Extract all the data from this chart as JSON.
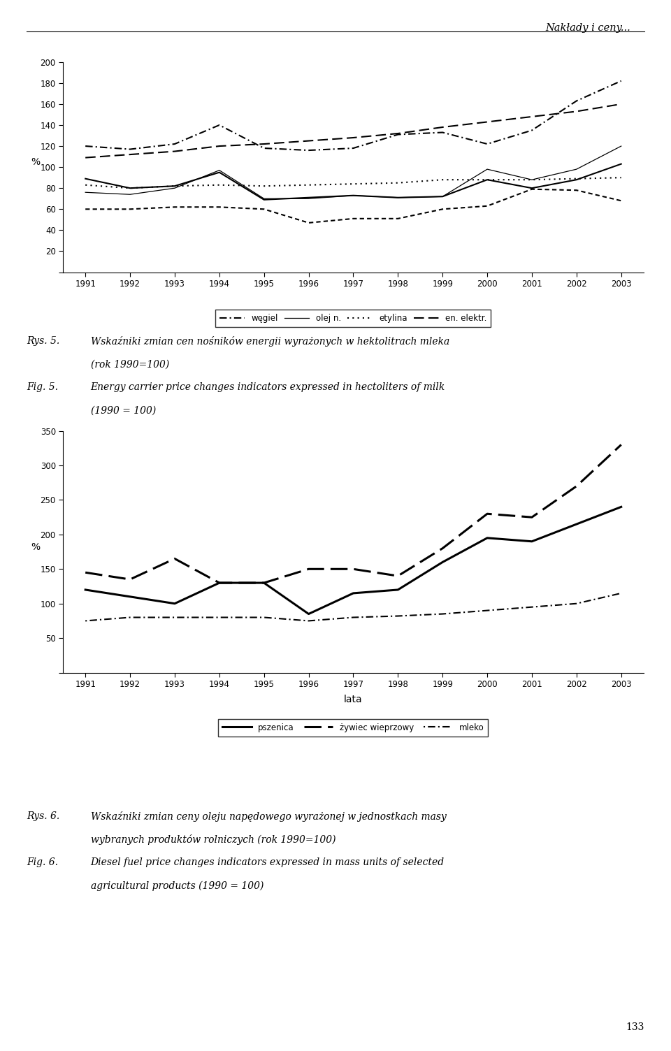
{
  "years": [
    1991,
    1992,
    1993,
    1994,
    1995,
    1996,
    1997,
    1998,
    1999,
    2000,
    2001,
    2002,
    2003
  ],
  "chart1": {
    "wegiel": [
      120,
      117,
      122,
      140,
      118,
      116,
      118,
      131,
      133,
      122,
      135,
      163,
      182
    ],
    "olej_n": [
      76,
      74,
      80,
      97,
      70,
      70,
      73,
      71,
      72,
      98,
      88,
      98,
      120
    ],
    "etylina": [
      83,
      80,
      82,
      83,
      82,
      83,
      84,
      85,
      88,
      88,
      88,
      89,
      90
    ],
    "en_elektr": [
      109,
      112,
      115,
      120,
      122,
      125,
      128,
      132,
      138,
      143,
      148,
      153,
      160
    ],
    "olej_extra": [
      89,
      80,
      82,
      95,
      69,
      71,
      73,
      71,
      72,
      88,
      80,
      88,
      103
    ],
    "dotted_low": [
      60,
      60,
      62,
      62,
      60,
      47,
      51,
      51,
      60,
      63,
      79,
      78,
      68
    ],
    "ylabel": "%",
    "ylim": [
      0,
      200
    ],
    "yticks": [
      0,
      20,
      40,
      60,
      80,
      100,
      120,
      140,
      160,
      180,
      200
    ],
    "legend_labels": [
      "węgiel",
      "olej n.",
      "etylina",
      "en. elektr."
    ]
  },
  "chart2": {
    "pszenica": [
      120,
      110,
      100,
      130,
      130,
      85,
      115,
      120,
      160,
      195,
      190,
      215,
      240
    ],
    "zywiec_wieprzowy": [
      145,
      135,
      165,
      130,
      130,
      150,
      150,
      140,
      180,
      230,
      225,
      270,
      330
    ],
    "mleko": [
      75,
      80,
      80,
      80,
      80,
      75,
      80,
      82,
      85,
      90,
      95,
      100,
      115
    ],
    "ylabel": "%",
    "xlabel": "lata",
    "ylim": [
      0,
      350
    ],
    "yticks": [
      0,
      50,
      100,
      150,
      200,
      250,
      300,
      350
    ],
    "legend_labels": [
      "pszenica",
      "żywiec wieprzowy",
      "mleko"
    ]
  },
  "header": "Nakłady i ceny...",
  "page_num": "133",
  "bg_color": "#ffffff"
}
